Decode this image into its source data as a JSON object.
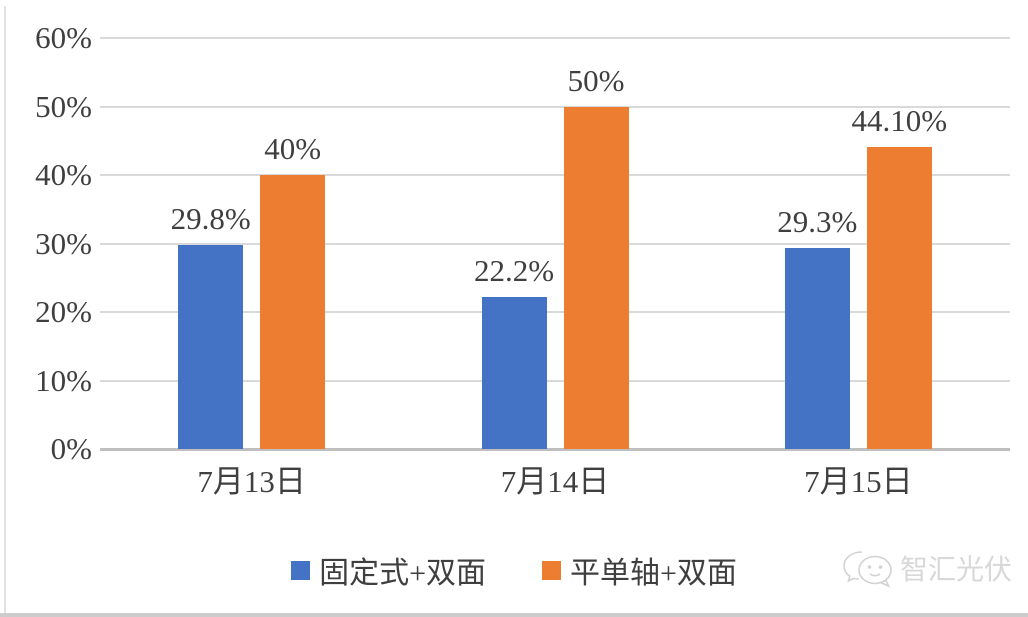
{
  "chart_data": {
    "type": "bar",
    "title": "",
    "xlabel": "",
    "ylabel": "",
    "categories": [
      "7月13日",
      "7月14日",
      "7月15日"
    ],
    "series": [
      {
        "name": "固定式+双面",
        "color": "#4472C4",
        "values": [
          29.8,
          22.2,
          29.3
        ],
        "value_labels": [
          "29.8%",
          "22.2%",
          "29.3%"
        ]
      },
      {
        "name": "平单轴+双面",
        "color": "#ED7D31",
        "values": [
          40,
          50,
          44.1
        ],
        "value_labels": [
          "40%",
          "50%",
          "44.10%"
        ]
      }
    ],
    "ylim": [
      0,
      60
    ],
    "ytick_step": 10,
    "ytick_labels": [
      "0%",
      "10%",
      "20%",
      "30%",
      "40%",
      "50%",
      "60%"
    ],
    "grid": true,
    "legend_position": "bottom"
  },
  "watermark": {
    "icon": "wechat-logo-icon",
    "text": "智汇光伏"
  },
  "colors": {
    "bar_blue": "#4472C4",
    "bar_orange": "#ED7D31",
    "gridline": "#D9D9D9",
    "axis_line": "#BFBFBF",
    "label_text": "#3F3F3F",
    "watermark_text": "#D8D8D8"
  }
}
